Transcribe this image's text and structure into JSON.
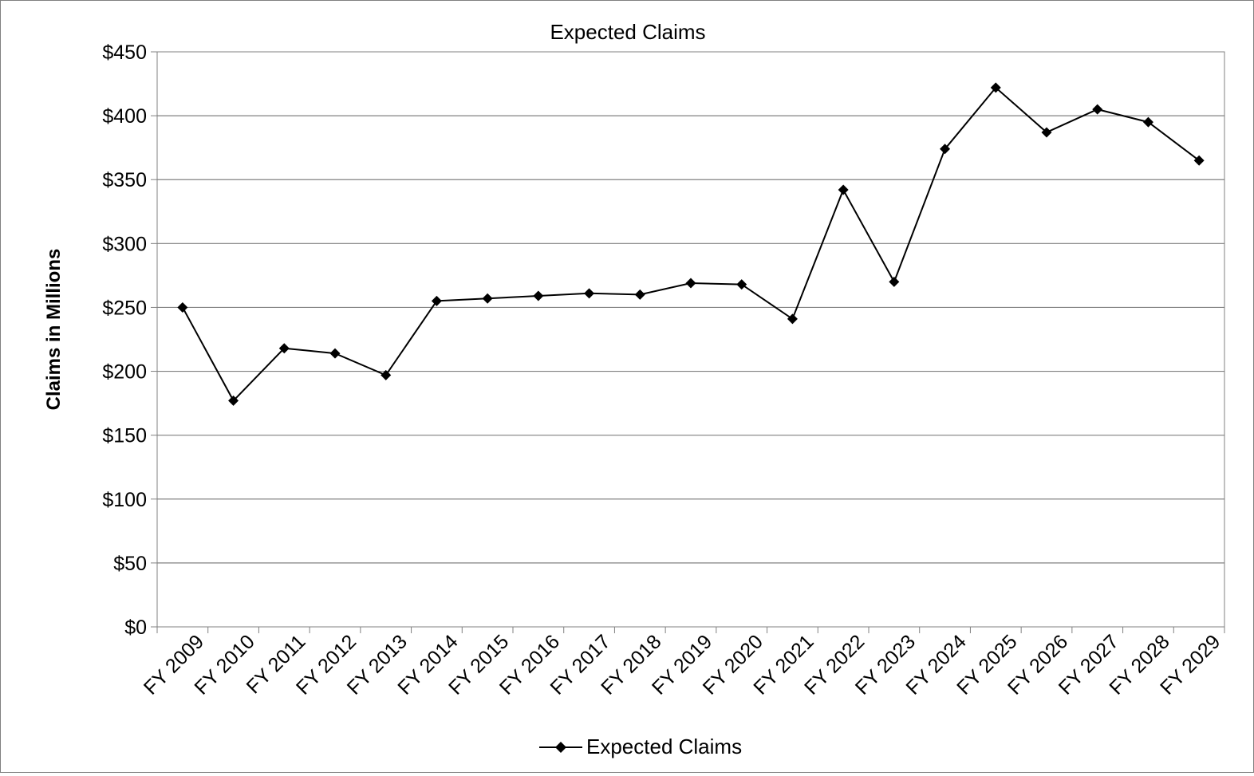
{
  "chart_data": {
    "type": "line",
    "title": "Expected Claims",
    "xlabel": "",
    "ylabel": "Claims in Millions",
    "categories": [
      "FY 2009",
      "FY 2010",
      "FY 2011",
      "FY 2012",
      "FY 2013",
      "FY 2014",
      "FY 2015",
      "FY 2016",
      "FY 2017",
      "FY 2018",
      "FY 2019",
      "FY 2020",
      "FY 2021",
      "FY 2022",
      "FY 2023",
      "FY 2024",
      "FY 2025",
      "FY 2026",
      "FY 2027",
      "FY 2028",
      "FY 2029"
    ],
    "series": [
      {
        "name": "Expected Claims",
        "values": [
          250,
          177,
          218,
          214,
          197,
          255,
          257,
          259,
          261,
          260,
          269,
          268,
          241,
          342,
          270,
          374,
          422,
          387,
          405,
          395,
          365
        ]
      }
    ],
    "ylim": [
      0,
      450
    ],
    "y_ticks": [
      0,
      50,
      100,
      150,
      200,
      250,
      300,
      350,
      400,
      450
    ],
    "y_tick_labels": [
      "$0",
      "$50",
      "$100",
      "$150",
      "$200",
      "$250",
      "$300",
      "$350",
      "$400",
      "$450"
    ],
    "grid": "horizontal",
    "legend": {
      "position": "bottom",
      "entries": [
        "Expected Claims"
      ]
    },
    "colors": {
      "line": "#000000",
      "grid": "#808080",
      "axis": "#808080"
    }
  }
}
